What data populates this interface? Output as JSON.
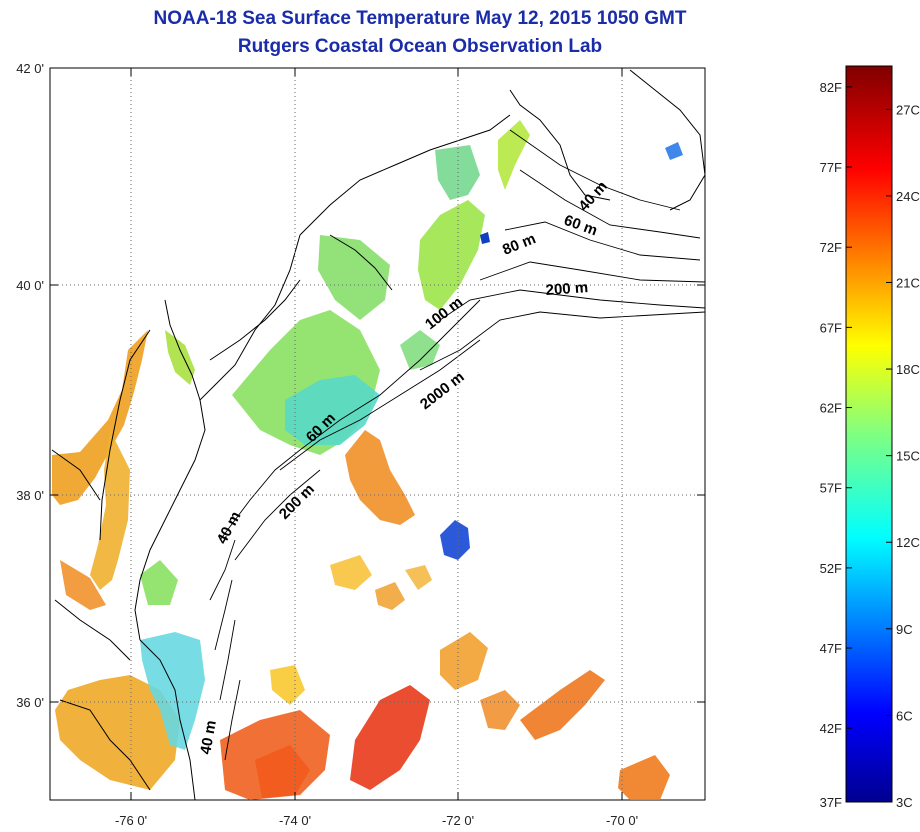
{
  "title": "NOAA-18 Sea Surface Temperature May 12, 2015 1050 GMT",
  "subtitle": "Rutgers Coastal Ocean Observation Lab",
  "map": {
    "lat_labels": [
      "42 0'",
      "40 0'",
      "38 0'",
      "36 0'"
    ],
    "lon_labels": [
      "-76 0'",
      "-74 0'",
      "-72 0'",
      "-70 0'"
    ],
    "contour_labels": [
      "40 m",
      "60 m",
      "80 m",
      "200 m",
      "100 m",
      "2000 m",
      "60 m",
      "200 m",
      "40 m",
      "40 m"
    ]
  },
  "colorbar": {
    "fahrenheit_labels": [
      "82F",
      "77F",
      "72F",
      "67F",
      "62F",
      "57F",
      "52F",
      "47F",
      "42F",
      "37F"
    ],
    "celsius_labels": [
      "27C",
      "24C",
      "21C",
      "18C",
      "15C",
      "12C",
      "9C",
      "6C",
      "3C"
    ],
    "range_celsius": [
      3,
      28.5
    ],
    "colormap": "jet"
  },
  "colors": {
    "title": "#1a2ca8",
    "land_outline": "#000000"
  }
}
